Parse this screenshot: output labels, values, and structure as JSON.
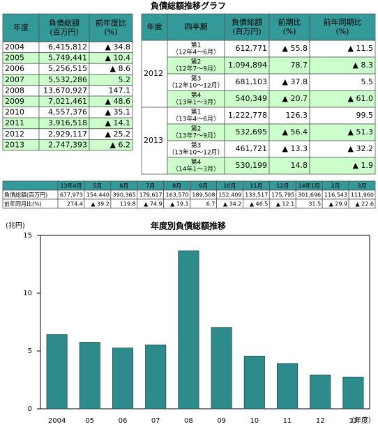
{
  "title": "負債総額推移グラフ",
  "annual_table": {
    "headers": [
      [
        "年度"
      ],
      [
        "負債総額",
        "(百万円)"
      ],
      [
        "前年度比",
        "(%)"
      ]
    ],
    "rows": [
      [
        "2004",
        "6,415,812",
        "▲ 34.8"
      ],
      [
        "2005",
        "5,749,441",
        "▲ 10.4"
      ],
      [
        "2006",
        "5,256,515",
        "▲ 8.6"
      ],
      [
        "2007",
        "5,532,286",
        "5.2"
      ],
      [
        "2008",
        "13,670,927",
        "147.1"
      ],
      [
        "2009",
        "7,021,461",
        "▲ 48.6"
      ],
      [
        "2010",
        "4,557,376",
        "▲ 35.1"
      ],
      [
        "2011",
        "3,916,518",
        "▲ 14.1"
      ],
      [
        "2012",
        "2,929,117",
        "▲ 25.2"
      ],
      [
        "2013",
        "2,747,393",
        "▲ 6.2"
      ]
    ]
  },
  "quarterly_table": {
    "headers": [
      [
        "年度"
      ],
      [
        "四半期"
      ],
      [
        "負債総額",
        "(百万円)"
      ],
      [
        "前期比",
        "(%)"
      ],
      [
        "前年同期比",
        "(%)"
      ]
    ],
    "groups": [
      {
        "year": "2012",
        "rows": [
          {
            "quarter": [
              "第1",
              "（12年4～6月）"
            ],
            "cells": [
              "612,771",
              "▲ 55.8",
              "▲ 11.5"
            ]
          },
          {
            "quarter": [
              "第2",
              "（12年7～9月）"
            ],
            "cells": [
              "1,094,894",
              "78.7",
              "▲ 8.3"
            ]
          },
          {
            "quarter": [
              "第3",
              "（12年10～12月）"
            ],
            "cells": [
              "681,103",
              "▲ 37.8",
              "5.5"
            ]
          },
          {
            "quarter": [
              "第4",
              "（13年1～3月）"
            ],
            "cells": [
              "540,349",
              "▲ 20.7",
              "▲ 61.0"
            ]
          }
        ]
      },
      {
        "year": "2013",
        "rows": [
          {
            "quarter": [
              "第1",
              "（13年4～6月）"
            ],
            "cells": [
              "1,222,778",
              "126.3",
              "99.5"
            ]
          },
          {
            "quarter": [
              "第2",
              "（13年7～9月）"
            ],
            "cells": [
              "532,695",
              "▲ 56.4",
              "▲ 51.3"
            ]
          },
          {
            "quarter": [
              "第3",
              "（13年10～12月）"
            ],
            "cells": [
              "461,721",
              "▲ 13.3",
              "▲ 32.2"
            ]
          },
          {
            "quarter": [
              "第4",
              "（14年1～3月）"
            ],
            "cells": [
              "530,199",
              "14.8",
              "▲ 1.9"
            ]
          }
        ]
      }
    ]
  },
  "monthly_table": {
    "header": [
      "13年4月",
      "5月",
      "6月",
      "7月",
      "8月",
      "9月",
      "10月",
      "11月",
      "12月",
      "14年1月",
      "2月",
      "3月"
    ],
    "rows": [
      {
        "label": "負債総額(百万円)",
        "cells": [
          "677,973",
          "154,440",
          "390,365",
          "179,617",
          "163,570",
          "189,508",
          "152,409",
          "133,517",
          "175,795",
          "301,696",
          "116,543",
          "111,960"
        ]
      },
      {
        "label": "前年同月比(%)",
        "cells": [
          "274.4",
          "▲ 39.2",
          "119.8",
          "▲ 74.9",
          "▲ 19.1",
          "6.7",
          "▲ 34.2",
          "▲ 46.5",
          "▲ 12.1",
          "31.5",
          "▲ 29.9",
          "▲ 22.6"
        ]
      }
    ]
  },
  "chart_data": {
    "type": "bar",
    "title": "年度別負債総額推移",
    "y_label": "(兆円)",
    "x_label": "（年度）",
    "categories": [
      "2004",
      "05",
      "06",
      "07",
      "08",
      "09",
      "10",
      "11",
      "12",
      "13"
    ],
    "values": [
      6.42,
      5.75,
      5.26,
      5.53,
      13.67,
      7.02,
      4.56,
      3.92,
      2.93,
      2.75
    ],
    "color": "#2e8b8b",
    "ylim": [
      0,
      15
    ],
    "yticks": [
      0,
      5,
      10,
      15
    ],
    "grid": false
  }
}
